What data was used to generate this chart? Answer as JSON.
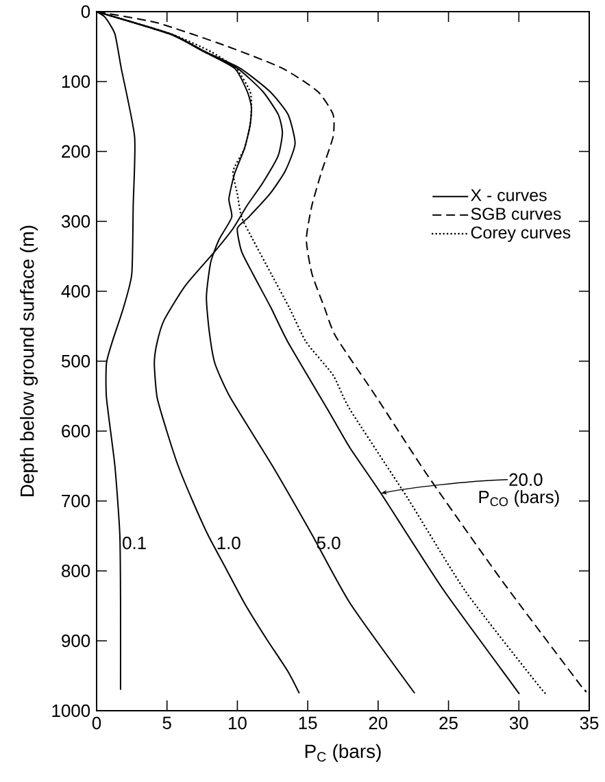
{
  "chart_data": {
    "type": "line",
    "xlabel": "P$_{C}$ (bars)",
    "ylabel": "Depth below ground surface (m)",
    "xlim": [
      0,
      35
    ],
    "xticks": [
      0,
      5,
      10,
      15,
      20,
      25,
      30,
      35
    ],
    "ylim": [
      1000,
      0
    ],
    "yticks": [
      0,
      100,
      200,
      300,
      400,
      500,
      600,
      700,
      800,
      900,
      1000
    ],
    "legend": "right",
    "series": [
      {
        "name": "X - curves",
        "color": "#000000",
        "line_style": "solid",
        "x": [
          0,
          0.6,
          1.3,
          1.75,
          2.7,
          2.6,
          2.5,
          1.9,
          1.1,
          0.7,
          0.7,
          1.3,
          1.65,
          1.7,
          1.7
        ],
        "values": [
          0,
          8,
          32,
          81,
          179,
          277,
          375,
          424,
          473,
          503,
          552,
          650,
          748,
          846,
          970
        ]
      },
      {
        "color": "#000000",
        "line_style": "solid",
        "x": [
          0,
          5.2,
          7.6,
          10.0,
          11.8,
          12.9,
          13.2,
          12.9,
          11.8,
          10.7,
          9.7,
          8.4,
          6.3,
          4.8,
          4.3,
          4.1,
          4.3,
          5.0,
          5.8,
          6.8,
          7.9,
          9.2,
          10.5,
          12.0,
          13.6,
          14.4
        ],
        "values": [
          0,
          32,
          57,
          81,
          114,
          147,
          173,
          206,
          245,
          277,
          310,
          343,
          392,
          441,
          473,
          503,
          552,
          601,
          650,
          699,
          748,
          797,
          846,
          895,
          944,
          975
        ]
      },
      {
        "color": "#000000",
        "line_style": "solid",
        "x": [
          0,
          5.2,
          7.6,
          9.8,
          10.7,
          11.0,
          10.9,
          10.5,
          9.8,
          9.4,
          9.6,
          8.7,
          8.1,
          7.8,
          8.0,
          8.4,
          9.5,
          12.5,
          15.3,
          18.0,
          22.6
        ],
        "values": [
          0,
          32,
          57,
          81,
          114,
          137,
          163,
          196,
          232,
          268,
          294,
          326,
          359,
          408,
          457,
          503,
          552,
          650,
          748,
          846,
          975
        ]
      },
      {
        "color": "#000000",
        "line_style": "solid",
        "x": [
          0,
          5.3,
          7.7,
          10.2,
          12.3,
          13.6,
          14.1,
          13.4,
          12.3,
          10.8,
          10.0,
          10.3,
          11.1,
          12.4,
          13.6,
          16.5,
          18.0,
          20.2,
          24.6,
          29.6,
          30.0
        ],
        "values": [
          0,
          32,
          57,
          81,
          114,
          147,
          189,
          228,
          261,
          294,
          310,
          343,
          375,
          424,
          473,
          572,
          624,
          689,
          826,
          964,
          975
        ]
      },
      {
        "name": "SGB curves",
        "color": "#000000",
        "line_style": "dashed",
        "x": [
          0,
          4.3,
          9.2,
          13.2,
          15.7,
          16.8,
          16.8,
          16.0,
          15.3,
          14.9,
          15.3,
          16.2,
          17.0,
          19.9,
          23.5,
          28.8,
          34.4,
          34.7
        ],
        "values": [
          0,
          16,
          49,
          81,
          114,
          147,
          179,
          228,
          277,
          326,
          375,
          424,
          465,
          552,
          663,
          814,
          964,
          970
        ]
      },
      {
        "name": "Corey curves",
        "color": "#000000",
        "line_style": "dotted",
        "x": [
          0,
          5.3,
          8.1,
          9.9,
          10.9,
          11.0,
          10.9,
          10.5,
          9.7,
          10.0,
          10.3,
          11.1,
          12.4,
          13.7,
          14.9,
          16.8,
          18.0,
          22.1,
          26.2,
          31.4,
          31.9
        ],
        "values": [
          0,
          32,
          57,
          81,
          114,
          137,
          163,
          196,
          228,
          261,
          294,
          326,
          375,
          424,
          473,
          520,
          569,
          696,
          829,
          964,
          975
        ]
      }
    ],
    "annotations": [
      {
        "text": "0.1",
        "x": 1.7,
        "y": 760
      },
      {
        "text": "1.0",
        "x": 8.4,
        "y": 760
      },
      {
        "text": "5.0",
        "x": 15.5,
        "y": 760
      },
      {
        "text": "20.0",
        "x": 20.2,
        "y": 689
      },
      "P$_{CO}$ (bars)"
    ]
  }
}
